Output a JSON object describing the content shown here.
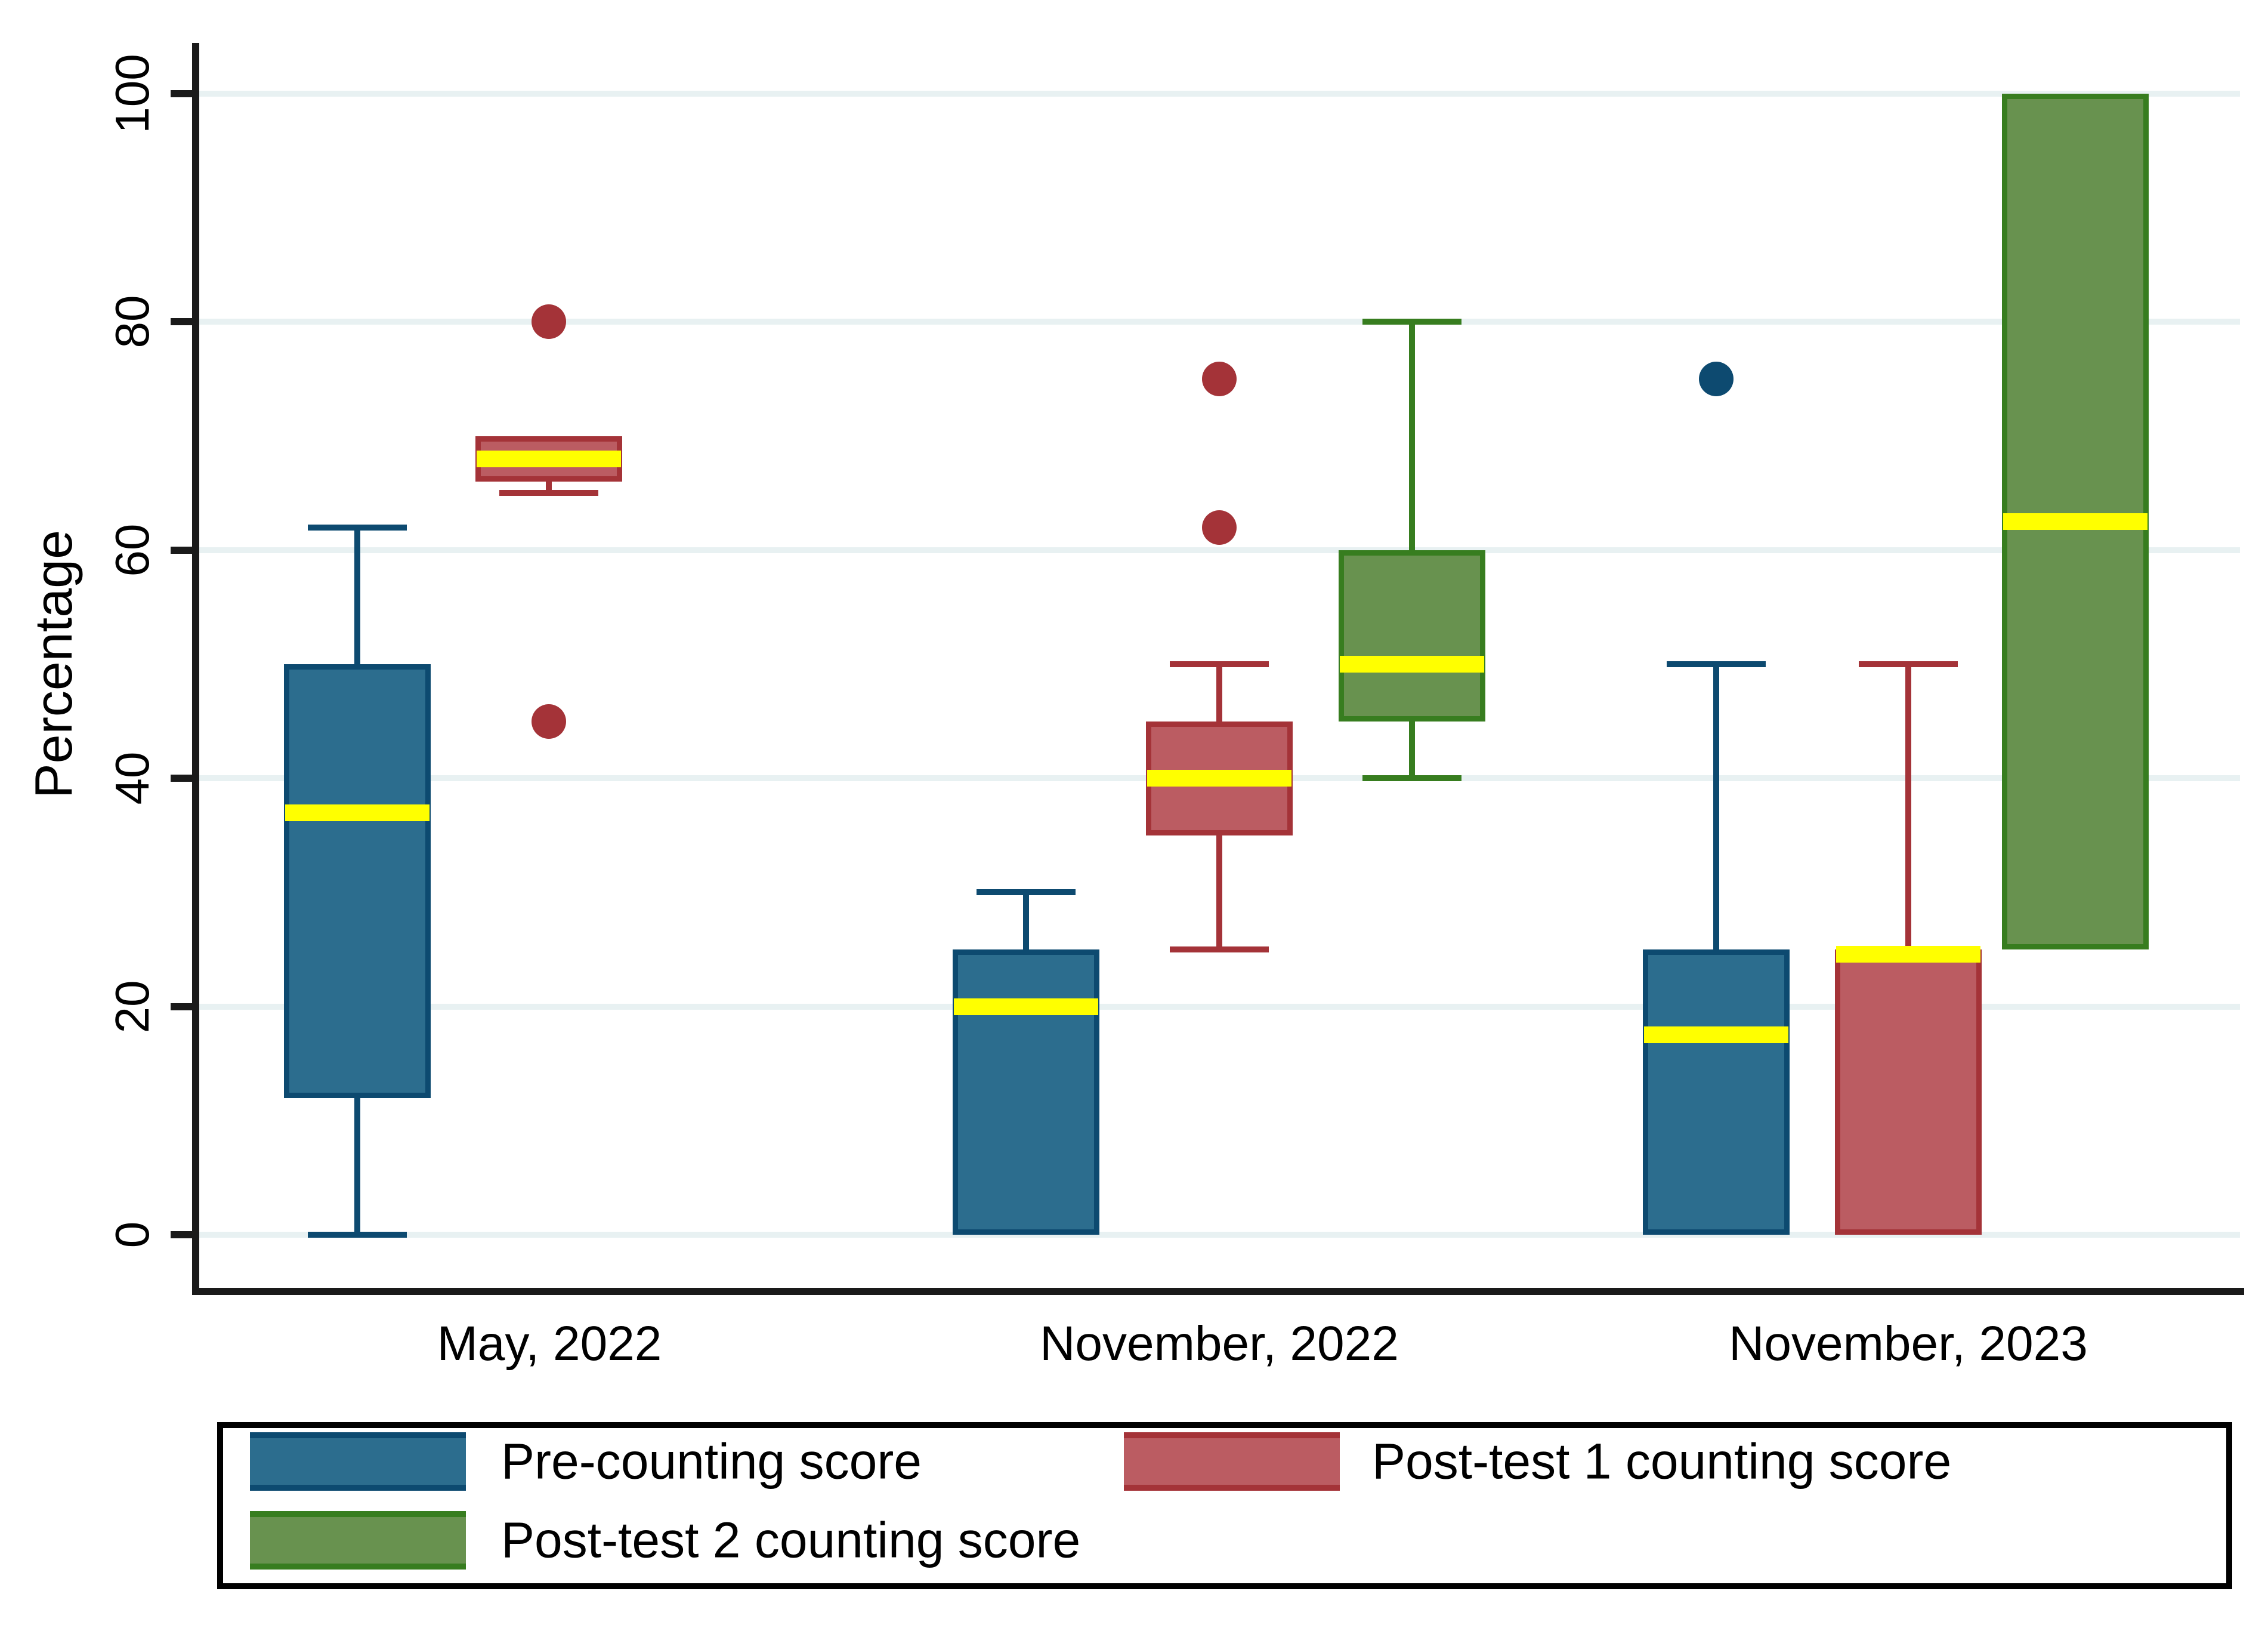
{
  "figure": {
    "background": "#ffffff"
  },
  "axes": {
    "ylabel": "Percentage",
    "yticks": [
      "0",
      "20",
      "40",
      "60",
      "80",
      "100"
    ],
    "xlabels": [
      "May, 2022",
      "November, 2022",
      "November, 2023"
    ]
  },
  "colors": {
    "grid": "#e8f1f2",
    "axis": "#1a1a1a",
    "median": "#ffff00",
    "blue_fill": "#2c6d8e",
    "blue_stroke": "#0d4a70",
    "red_fill": "#bb5c62",
    "red_stroke": "#a43338",
    "green_fill": "#68924f",
    "green_stroke": "#377d1f"
  },
  "legend": {
    "entries": [
      {
        "label": "Pre-counting score",
        "color": "#2c6d8e",
        "border": "#0d4a70"
      },
      {
        "label": "Post-test 1 counting score",
        "color": "#bb5c62",
        "border": "#a43338"
      },
      {
        "label": "Post-test 2 counting score",
        "color": "#68924f",
        "border": "#377d1f"
      }
    ]
  },
  "chart_data": {
    "type": "boxplot",
    "title": "",
    "xlabel": "",
    "ylabel": "Percentage",
    "ylim": [
      0,
      100
    ],
    "yticks": [
      0,
      20,
      40,
      60,
      80,
      100
    ],
    "grid": "horizontal",
    "legend_position": "bottom",
    "median_color": "#ffff00",
    "categories": [
      "May, 2022",
      "November, 2022",
      "November, 2023"
    ],
    "series": [
      {
        "name": "Pre-counting score",
        "fill": "#2c6d8e",
        "stroke": "#0d4a70",
        "boxes": [
          {
            "category": "May, 2022",
            "whisker_low": 0,
            "q1": 12,
            "median": 37,
            "q3": 50,
            "whisker_high": 62,
            "outliers": []
          },
          {
            "category": "November, 2022",
            "whisker_low": null,
            "q1": 0,
            "median": 20,
            "q3": 25,
            "whisker_high": 30,
            "outliers": []
          },
          {
            "category": "November, 2023",
            "whisker_low": null,
            "q1": 0,
            "median": 17.5,
            "q3": 25,
            "whisker_high": 50,
            "outliers": [
              75
            ]
          }
        ]
      },
      {
        "name": "Post-test 1 counting score",
        "fill": "#bb5c62",
        "stroke": "#a43338",
        "boxes": [
          {
            "category": "May, 2022",
            "whisker_low": 65,
            "q1": 66,
            "median": 68,
            "q3": 70,
            "whisker_high": null,
            "outliers": [
              80,
              45
            ]
          },
          {
            "category": "November, 2022",
            "whisker_low": 25,
            "q1": 35,
            "median": 40,
            "q3": 45,
            "whisker_high": 50,
            "outliers": [
              75,
              62
            ]
          },
          {
            "category": "November, 2023",
            "whisker_low": null,
            "q1": 0,
            "median": 25,
            "q3": 25,
            "whisker_high": 50,
            "outliers": []
          }
        ]
      },
      {
        "name": "Post-test 2 counting score",
        "fill": "#68924f",
        "stroke": "#377d1f",
        "boxes": [
          {
            "category": "November, 2022",
            "whisker_low": 40,
            "q1": 45,
            "median": 50,
            "q3": 60,
            "whisker_high": 80,
            "outliers": []
          },
          {
            "category": "November, 2023",
            "whisker_low": null,
            "q1": 25,
            "median": 62.5,
            "q3": 100,
            "whisker_high": null,
            "outliers": []
          }
        ]
      }
    ]
  }
}
